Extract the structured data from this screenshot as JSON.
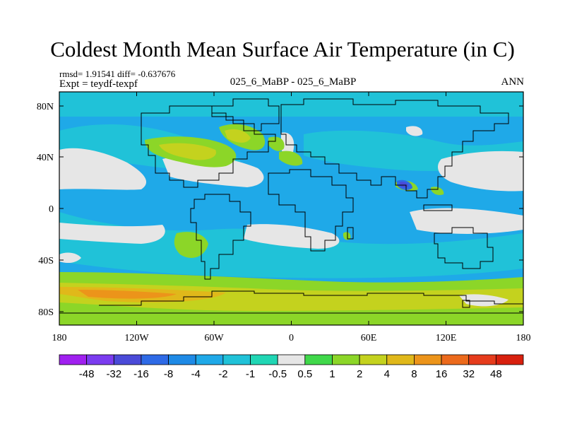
{
  "title": "Coldest Month Mean Surface Air Temperature (in C)",
  "stats": "rmsd= 1.91541  diff= -0.637676",
  "experiment": "Expt = teydf-texpf",
  "period": "025_6_MaBP - 025_6_MaBP",
  "season": "ANN",
  "x_ticks": [
    "180",
    "120W",
    "60W",
    "0",
    "60E",
    "120E",
    "180"
  ],
  "y_ticks": [
    "80N",
    "40N",
    "0",
    "40S",
    "80S"
  ],
  "colorbar": {
    "labels": [
      "-48",
      "-32",
      "-16",
      "-8",
      "-4",
      "-2",
      "-1",
      "-0.5",
      "0.5",
      "1",
      "2",
      "4",
      "8",
      "16",
      "32",
      "48"
    ],
    "colors": [
      "#a020f0",
      "#7b3cf0",
      "#4a4ad8",
      "#2e6ae6",
      "#1e8ae6",
      "#1fa9e8",
      "#20c2d8",
      "#20d6b4",
      "#e6e6e6",
      "#40d84a",
      "#8cd628",
      "#c4d21e",
      "#e0b81a",
      "#ec941a",
      "#ec6a1c",
      "#e63c1c",
      "#d8200e"
    ]
  },
  "colors": {
    "ocean_main": "#1fa9e8",
    "ocean_light": "#20c2d8",
    "neutral": "#e6e6e6",
    "warm1": "#8cd628",
    "warm2": "#c4d21e",
    "warm3": "#e0b81a",
    "warm4": "#ec941a",
    "cold_spot": "#2e6ae6",
    "coast": "#000000"
  }
}
